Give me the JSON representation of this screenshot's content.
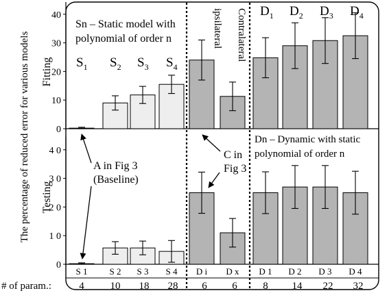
{
  "chart_data": {
    "type": "bar",
    "ylabel": "The percentage of reduced error for various models",
    "categories": [
      "S1",
      "S2",
      "S3",
      "S4",
      "Di",
      "Dx",
      "D1",
      "D2",
      "D3",
      "D4"
    ],
    "group_colors": {
      "static": "#eeeeee",
      "other": "#b4b4b4"
    },
    "fitting": {
      "label": "Fitting",
      "ylim": [
        0,
        45
      ],
      "yticks": [
        "0",
        "10",
        "20",
        "30",
        "40"
      ],
      "values": [
        0.2,
        9,
        11.8,
        15.5,
        24,
        11.3,
        24.8,
        29,
        30.8,
        32.5
      ],
      "errors": [
        0.3,
        2.5,
        3,
        3.2,
        7,
        5,
        7,
        8,
        8,
        8
      ],
      "bar_labels": [
        {
          "base": "S",
          "sub": "1"
        },
        {
          "base": "S",
          "sub": "2"
        },
        {
          "base": "S",
          "sub": "3"
        },
        {
          "base": "S",
          "sub": "4"
        },
        {
          "base": "ipsilateral",
          "sub": ""
        },
        {
          "base": "Contralateral",
          "sub": ""
        },
        {
          "base": "D",
          "sub": "1"
        },
        {
          "base": "D",
          "sub": "2"
        },
        {
          "base": "D",
          "sub": "3"
        },
        {
          "base": "D",
          "sub": "4"
        }
      ],
      "annotation": [
        "Sn – Static model with",
        "polynomial of order n"
      ]
    },
    "testing": {
      "label": "Testing",
      "ylim": [
        0,
        45
      ],
      "yticks": [
        "0",
        "1 0",
        "2 0",
        "3 0",
        "4 0"
      ],
      "values": [
        0.2,
        5.7,
        5.7,
        4.5,
        25,
        11,
        25,
        27,
        27,
        25
      ],
      "errors": [
        0.3,
        2.2,
        2.4,
        3.8,
        7.2,
        5,
        7.3,
        7.5,
        7.5,
        7.5
      ],
      "annotation": [
        "Dn – Dynamic with static",
        "polynomial of order n"
      ]
    },
    "tick_labels": [
      "S 1",
      "S 2",
      "S 3",
      "S 4",
      "D i",
      "D x",
      "D 1",
      "D 2",
      "D 3",
      "D 4"
    ],
    "params": {
      "label": "# of param.:",
      "values": [
        "4",
        "10",
        "18",
        "28",
        "6",
        "6",
        "8",
        "14",
        "22",
        "32"
      ]
    },
    "callouts": {
      "baseline": [
        "A in Fig 3",
        "(Baseline)"
      ],
      "c": [
        "C in",
        "Fig 3"
      ]
    }
  }
}
